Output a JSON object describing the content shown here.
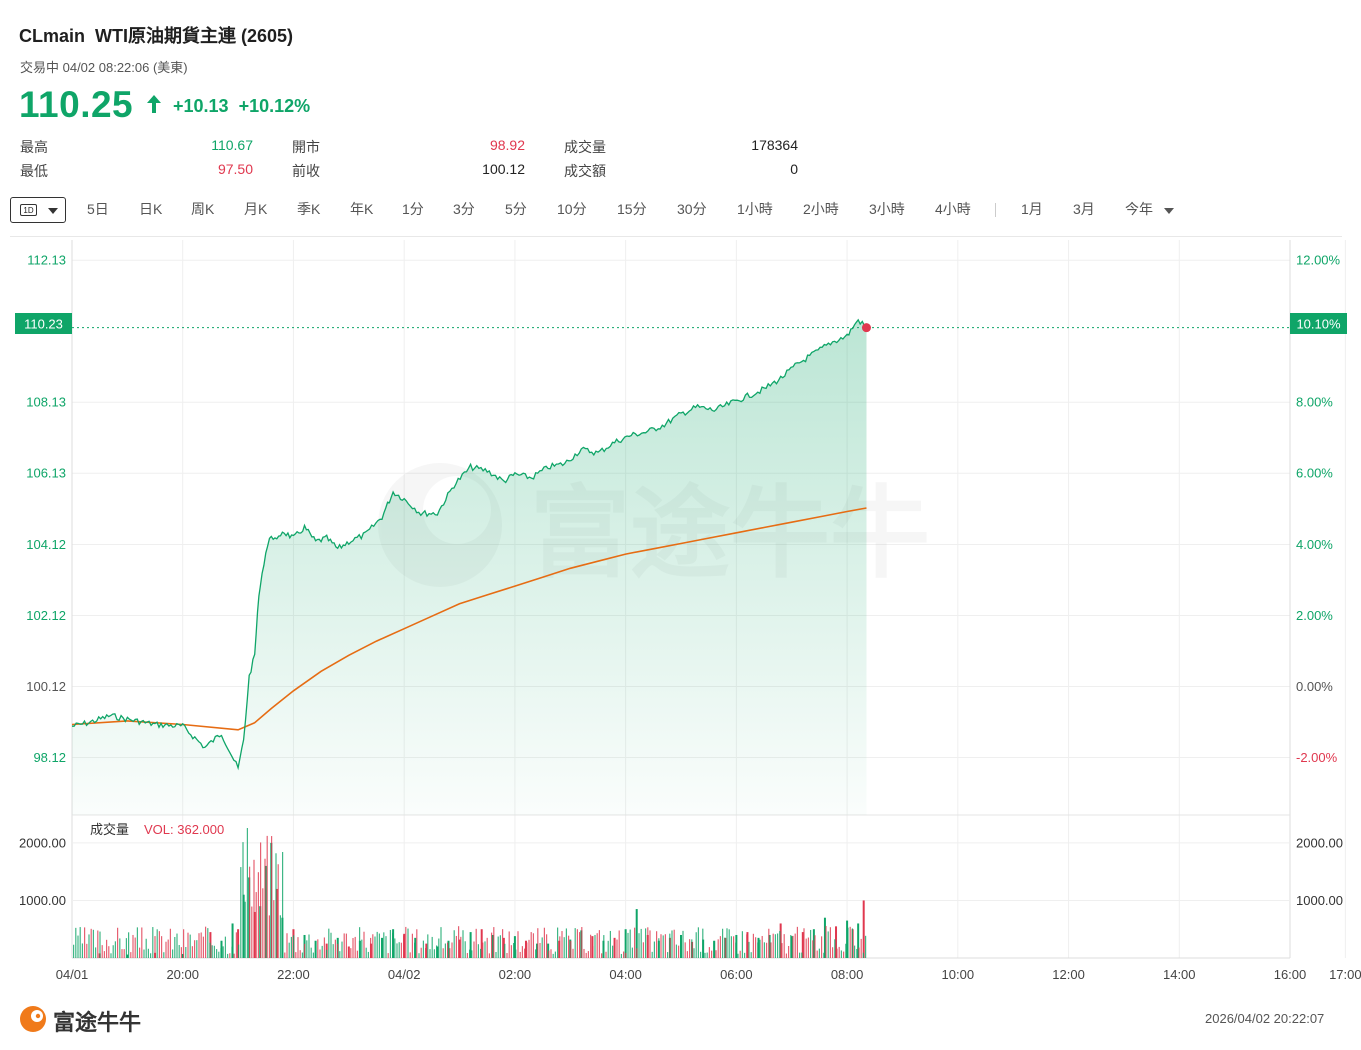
{
  "header": {
    "symbol": "CLmain",
    "name": "WTI原油期貨主連 (2605)",
    "status": "交易中 04/02 08:22:06 (美東)",
    "price": "110.25",
    "change": "+10.13",
    "change_pct": "+10.12%"
  },
  "stats": [
    {
      "label": "最高",
      "value": "110.67",
      "color": "green"
    },
    {
      "label": "最低",
      "value": "97.50",
      "color": "red"
    },
    {
      "label": "開市",
      "value": "98.92",
      "color": "red"
    },
    {
      "label": "前收",
      "value": "100.12",
      "color": "dark"
    },
    {
      "label": "成交量",
      "value": "178364",
      "color": "dark"
    },
    {
      "label": "成交額",
      "value": "0",
      "color": "dark"
    }
  ],
  "toolbar": {
    "period_badge": "1D",
    "periods": [
      "5日",
      "日K",
      "周K",
      "月K",
      "季K",
      "年K",
      "1分",
      "3分",
      "5分",
      "10分",
      "15分",
      "30分",
      "1小時",
      "2小時",
      "3小時",
      "4小時"
    ],
    "ranges": [
      "1月",
      "3月",
      "今年"
    ]
  },
  "chart_data": {
    "type": "line",
    "prev_close": 100.12,
    "current_price_label": "110.23",
    "current_pct_label": "10.10%",
    "ylim": [
      96.5,
      112.7
    ],
    "y_ticks_left": [
      "112.13",
      "108.13",
      "106.13",
      "104.12",
      "102.12",
      "100.12",
      "98.12"
    ],
    "y_ticks_right": [
      "12.00%",
      "8.00%",
      "6.00%",
      "4.00%",
      "2.00%",
      "0.00%",
      "-2.00%"
    ],
    "x_ticks": [
      "04/01",
      "20:00",
      "22:00",
      "04/02",
      "02:00",
      "04:00",
      "06:00",
      "08:00",
      "10:00",
      "12:00",
      "14:00",
      "16:00",
      "17:00"
    ],
    "price_series": {
      "name": "",
      "x_hours": [
        0,
        0.3,
        0.7,
        1,
        1.5,
        2,
        2.4,
        2.7,
        3,
        3.1,
        3.2,
        3.3,
        3.35,
        3.4,
        3.5,
        3.6,
        3.7,
        3.8,
        4,
        4.2,
        4.4,
        4.6,
        4.8,
        5,
        5.3,
        5.6,
        5.8,
        6,
        6.3,
        6.6,
        6.9,
        7.2,
        7.5,
        7.8,
        8,
        8.3,
        8.6,
        8.9,
        9.2,
        9.5,
        9.8,
        10.1,
        10.4,
        10.7,
        11,
        11.3,
        11.6,
        11.9,
        12.2,
        12.5,
        12.8,
        13.1,
        13.4,
        13.7,
        14,
        14.2,
        14.35
      ],
      "values": [
        99.0,
        99.1,
        99.3,
        99.2,
        99.05,
        99.0,
        98.4,
        98.8,
        97.8,
        98.6,
        100.4,
        101.0,
        102.2,
        103.0,
        103.9,
        104.4,
        104.2,
        104.5,
        104.3,
        104.6,
        104.2,
        104.3,
        104.0,
        104.2,
        104.4,
        104.9,
        105.6,
        105.4,
        105.0,
        105.0,
        105.8,
        106.3,
        106.2,
        105.9,
        106.1,
        106.0,
        106.3,
        106.4,
        106.8,
        106.7,
        107.0,
        107.2,
        107.3,
        107.5,
        107.8,
        108.0,
        107.9,
        108.1,
        108.3,
        108.5,
        108.8,
        109.2,
        109.5,
        109.8,
        110.0,
        110.45,
        110.23
      ]
    },
    "avg_series": {
      "name": "",
      "x_hours": [
        0,
        1,
        2,
        3,
        3.3,
        3.6,
        4,
        4.5,
        5,
        5.5,
        6,
        6.5,
        7,
        7.5,
        8,
        8.5,
        9,
        9.5,
        10,
        10.5,
        11,
        11.5,
        12,
        12.5,
        13,
        13.5,
        14,
        14.35
      ],
      "values": [
        99.05,
        99.15,
        99.05,
        98.9,
        99.1,
        99.5,
        100.0,
        100.55,
        101.0,
        101.4,
        101.75,
        102.1,
        102.45,
        102.7,
        102.95,
        103.2,
        103.45,
        103.65,
        103.85,
        104.0,
        104.15,
        104.3,
        104.45,
        104.6,
        104.75,
        104.9,
        105.05,
        105.15
      ]
    },
    "volume": {
      "label": "成交量",
      "vol_label": "VOL: 362.000",
      "y_ticks": [
        "2000.00",
        "1000.00"
      ],
      "ylim": [
        0,
        2050
      ],
      "x_hours": [
        0.5,
        1.0,
        1.5,
        2.0,
        2.5,
        2.7,
        2.9,
        3.0,
        3.1,
        3.2,
        3.3,
        3.4,
        3.5,
        3.6,
        3.7,
        3.8,
        4.0,
        4.2,
        4.4,
        4.6,
        4.8,
        5.0,
        5.2,
        5.4,
        5.6,
        5.8,
        6.0,
        6.2,
        6.4,
        6.6,
        6.8,
        7.0,
        7.2,
        7.4,
        7.6,
        7.8,
        8.0,
        8.2,
        8.4,
        8.6,
        8.8,
        9.0,
        9.2,
        9.4,
        9.6,
        9.8,
        10.0,
        10.2,
        10.4,
        10.6,
        10.8,
        11.0,
        11.2,
        11.4,
        11.6,
        11.8,
        12.0,
        12.2,
        12.4,
        12.6,
        12.8,
        13.0,
        13.2,
        13.4,
        13.6,
        13.8,
        14.0,
        14.1,
        14.2,
        14.3
      ],
      "values": [
        80,
        60,
        90,
        70,
        450,
        300,
        600,
        500,
        1100,
        1400,
        800,
        900,
        1600,
        2000,
        1200,
        700,
        500,
        400,
        300,
        250,
        350,
        200,
        300,
        250,
        350,
        500,
        420,
        350,
        250,
        200,
        300,
        320,
        450,
        500,
        400,
        350,
        380,
        300,
        250,
        250,
        300,
        320,
        480,
        380,
        300,
        350,
        500,
        850,
        400,
        300,
        350,
        400,
        280,
        320,
        300,
        350,
        400,
        450,
        350,
        400,
        600,
        380,
        450,
        500,
        700,
        550,
        650,
        500,
        600,
        1000
      ],
      "colors": [
        "r",
        "g",
        "r",
        "g",
        "r",
        "g",
        "g",
        "r",
        "g",
        "g",
        "r",
        "g",
        "g",
        "g",
        "r",
        "g",
        "r",
        "g",
        "g",
        "r",
        "g",
        "r",
        "g",
        "r",
        "g",
        "g",
        "r",
        "g",
        "r",
        "g",
        "g",
        "r",
        "g",
        "r",
        "g",
        "r",
        "g",
        "r",
        "g",
        "g",
        "r",
        "g",
        "g",
        "r",
        "g",
        "r",
        "g",
        "g",
        "r",
        "g",
        "r",
        "g",
        "r",
        "g",
        "g",
        "r",
        "g",
        "r",
        "g",
        "g",
        "r",
        "g",
        "r",
        "g",
        "g",
        "r",
        "g",
        "r",
        "g",
        "r"
      ]
    }
  },
  "watermark": "富途牛牛",
  "footer": {
    "brand": "富途牛牛",
    "datetime": "2026/04/02 20:22:07"
  },
  "colors": {
    "up": "#0fa568",
    "down": "#e0384f",
    "avg_line": "#e66c13",
    "grid": "#efefef"
  }
}
